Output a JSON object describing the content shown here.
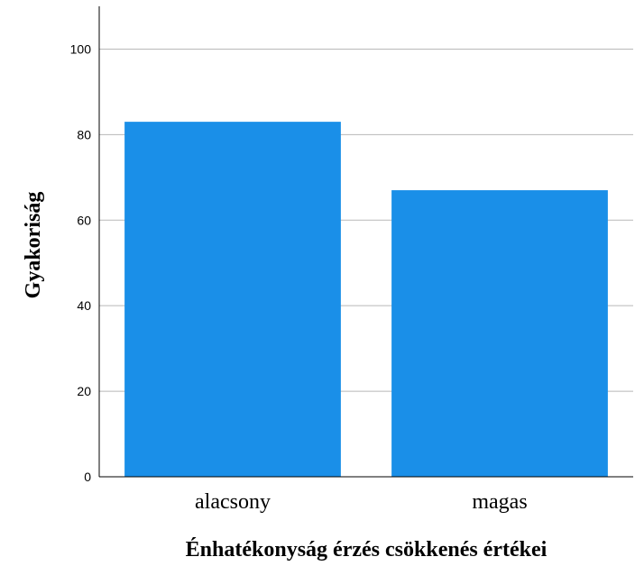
{
  "chart_data": {
    "type": "bar",
    "categories": [
      "alacsony",
      "magas"
    ],
    "values": [
      83,
      67
    ],
    "xlabel": "Énhatékonyság érzés csökkenés értékei",
    "ylabel": "Gyakoriság",
    "ylim": [
      0,
      110
    ],
    "yticks": [
      "0",
      "20",
      "40",
      "60",
      "80",
      "100"
    ],
    "ytick_values": [
      0,
      20,
      40,
      60,
      80,
      100
    ],
    "grid": true,
    "bar_color": "#1a8fe8",
    "grid_color": "#b8b8b8",
    "axis_color": "#000000"
  }
}
